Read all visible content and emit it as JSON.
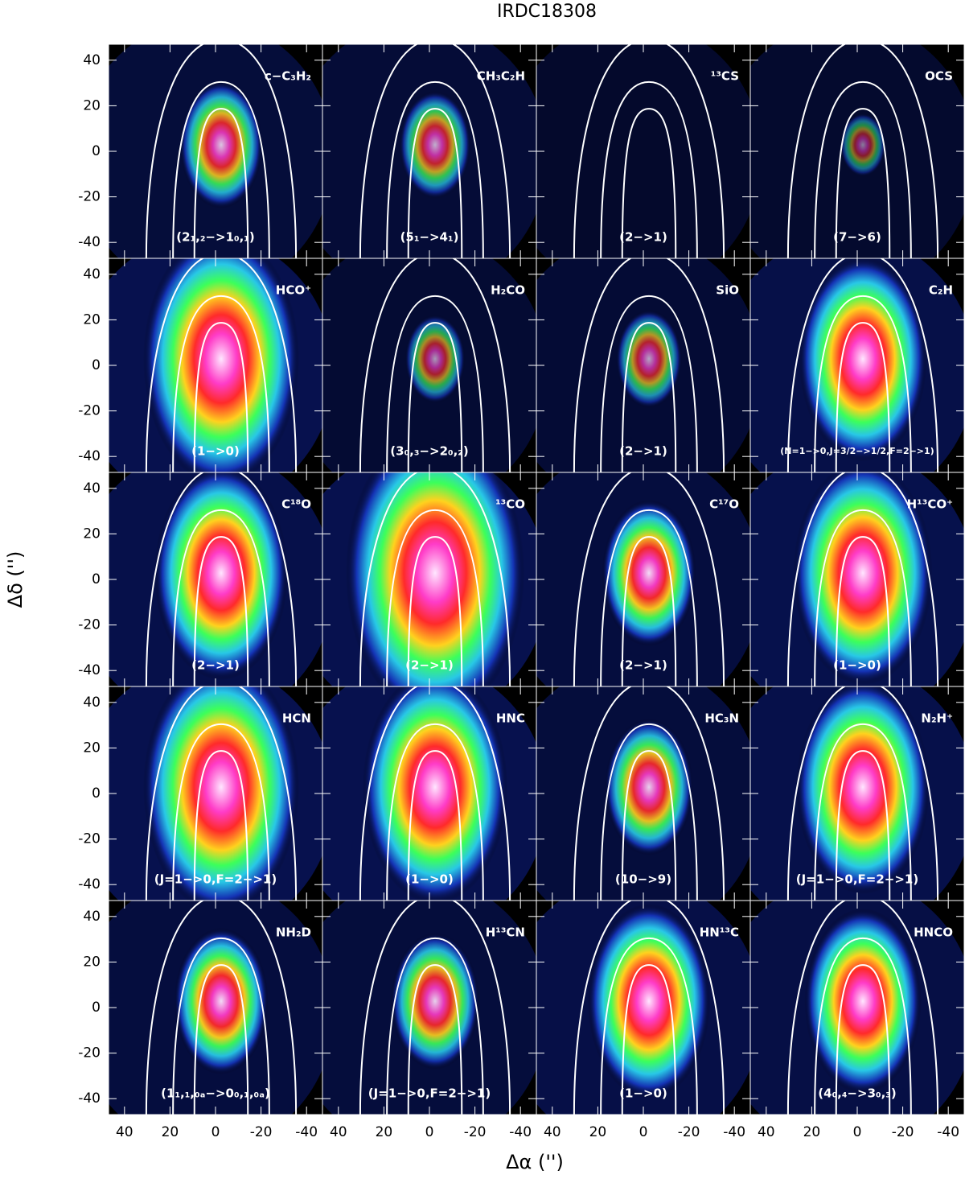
{
  "chart_data": {
    "type": "map",
    "title": "IRDC18308",
    "x_label": "Δα ('')",
    "y_label": "Δδ ('')",
    "xlim": [
      47,
      -47
    ],
    "ylim": [
      -47,
      47
    ],
    "xticks": [
      40,
      20,
      0,
      -20,
      -40
    ],
    "yticks": [
      40,
      20,
      0,
      -20,
      -40
    ],
    "panels": [
      {
        "molecule": "c−C₃H₂",
        "transition": "(2₁,₂−>1₀,₁)"
      },
      {
        "molecule": "CH₃C₂H",
        "transition": "(5₁−>4₁)"
      },
      {
        "molecule": "¹³CS",
        "transition": "(2−>1)"
      },
      {
        "molecule": "OCS",
        "transition": "(7−>6)"
      },
      {
        "molecule": "HCO⁺",
        "transition": "(1−>0)"
      },
      {
        "molecule": "H₂CO",
        "transition": "(3₀,₃−>2₀,₂)"
      },
      {
        "molecule": "SiO",
        "transition": "(2−>1)"
      },
      {
        "molecule": "C₂H",
        "transition": "(N=1−>0,J=3/2−>1/2,F=2−>1)"
      },
      {
        "molecule": "C¹⁸O",
        "transition": "(2−>1)"
      },
      {
        "molecule": "¹³CO",
        "transition": "(2−>1)"
      },
      {
        "molecule": "C¹⁷O",
        "transition": "(2−>1)"
      },
      {
        "molecule": "H¹³CO⁺",
        "transition": "(1−>0)"
      },
      {
        "molecule": "HCN",
        "transition": "(J=1−>0,F=2−>1)"
      },
      {
        "molecule": "HNC",
        "transition": "(1−>0)"
      },
      {
        "molecule": "HC₃N",
        "transition": "(10−>9)"
      },
      {
        "molecule": "N₂H⁺",
        "transition": "(J=1−>0,F=2−>1)"
      },
      {
        "molecule": "NH₂D",
        "transition": "(1₁,₁,₀ₐ−>0₀,₁,₀ₐ)"
      },
      {
        "molecule": "H¹³CN",
        "transition": "(J=1−>0,F=2−>1)"
      },
      {
        "molecule": "HN¹³C",
        "transition": "(1−>0)"
      },
      {
        "molecule": "HNCO",
        "transition": "(4₀,₄−>3₀,₃)"
      }
    ]
  }
}
